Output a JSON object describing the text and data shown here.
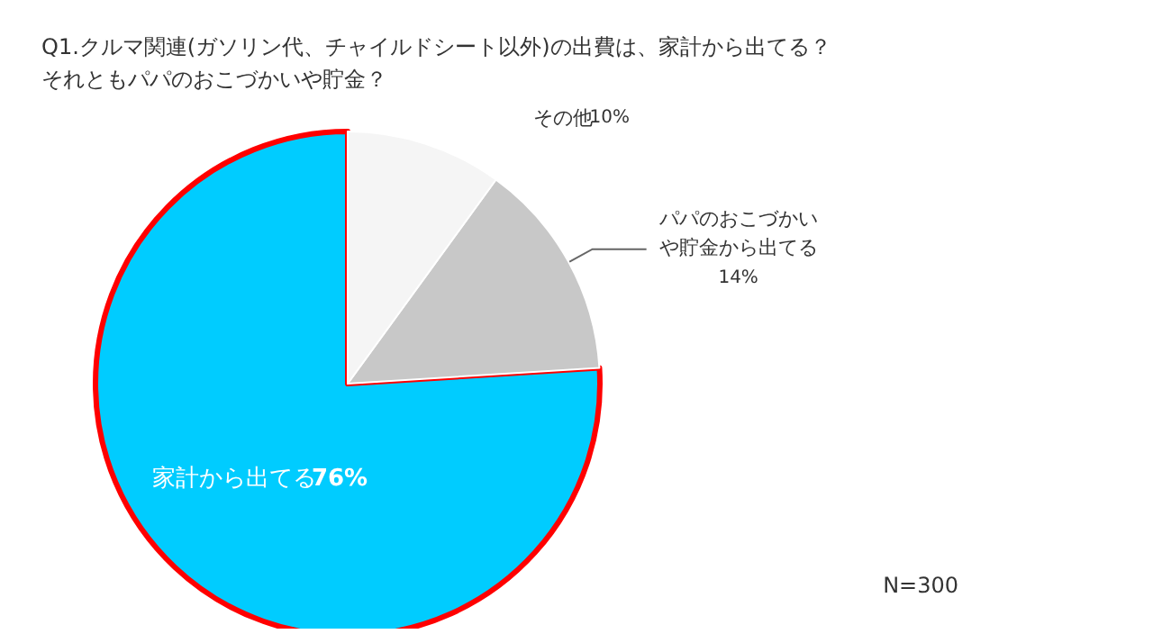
{
  "chart_data": {
    "type": "pie",
    "title": "Q1.クルマ関連(ガソリン代、チャイルドシート以外)の出費は、家計から出てる？それともパパのおこづかいや貯金？",
    "categories": [
      "家計から出てる",
      "パパのおこづかいや貯金から出てる",
      "その他"
    ],
    "values": [
      76,
      14,
      10
    ],
    "value_labels": [
      "76%",
      "14%",
      "10%"
    ],
    "colors": [
      "#00ccff",
      "#c8c8c8",
      "#f5f5f5"
    ],
    "legend": false,
    "annotations": [
      "N=300"
    ]
  }
}
